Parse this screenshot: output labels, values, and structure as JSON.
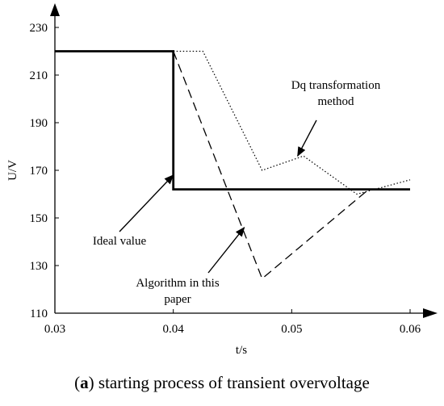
{
  "chart_data": {
    "type": "line",
    "xlabel": "t/s",
    "ylabel": "U/V",
    "xlim": [
      0.03,
      0.06
    ],
    "ylim": [
      110,
      230
    ],
    "x_ticks": [
      0.03,
      0.04,
      0.05,
      0.06
    ],
    "x_tick_labels": [
      "0.03",
      "0.04",
      "0.05",
      "0.06"
    ],
    "y_ticks": [
      110,
      130,
      150,
      170,
      190,
      210,
      230
    ],
    "y_tick_labels": [
      "110",
      "130",
      "150",
      "170",
      "190",
      "210",
      "230"
    ],
    "grid": false,
    "series": [
      {
        "name": "Ideal value",
        "style": "solid-thick",
        "x": [
          0.03,
          0.04,
          0.04,
          0.06
        ],
        "y": [
          220,
          220,
          162,
          162
        ]
      },
      {
        "name": "Dq transformation method",
        "style": "dotted",
        "x": [
          0.04,
          0.0425,
          0.0475,
          0.051,
          0.0555,
          0.06
        ],
        "y": [
          220,
          220,
          170,
          176,
          160,
          166
        ]
      },
      {
        "name": "Algorithm in this paper",
        "style": "dashed",
        "x": [
          0.04,
          0.0475,
          0.0565
        ],
        "y": [
          220,
          124.5,
          162
        ]
      }
    ],
    "annotations": [
      {
        "lines": [
          "Dq transformation",
          "method"
        ],
        "arrow_to": [
          0.0505,
          176
        ]
      },
      {
        "lines": [
          "Ideal value"
        ],
        "arrow_to": [
          0.04,
          168
        ]
      },
      {
        "lines": [
          "Algorithm in this",
          "paper"
        ],
        "arrow_to": [
          0.046,
          146
        ]
      }
    ]
  },
  "caption": {
    "label": "a",
    "text": " starting process of transient overvoltage"
  }
}
